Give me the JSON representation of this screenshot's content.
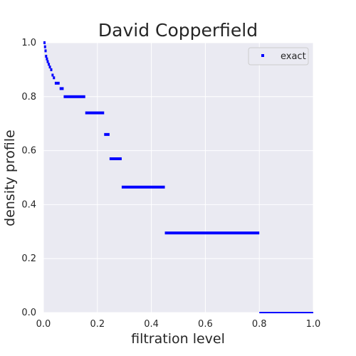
{
  "chart_data": {
    "type": "scatter",
    "title": "David Copperfield",
    "xlabel": "filtration level",
    "ylabel": "density profile",
    "xlim": [
      0,
      1
    ],
    "ylim": [
      0,
      1
    ],
    "xticks": [
      "0.0",
      "0.2",
      "0.4",
      "0.6",
      "0.8",
      "1.0"
    ],
    "yticks": [
      "0.0",
      "0.2",
      "0.4",
      "0.6",
      "0.8",
      "1.0"
    ],
    "grid": true,
    "legend_position": "top-right",
    "series": [
      {
        "name": "exact",
        "color": "#0000ff",
        "marker": "square",
        "steps": [
          {
            "x_start": 0.0,
            "x_end": 0.002,
            "y": 1.0
          },
          {
            "x_start": 0.002,
            "x_end": 0.004,
            "y": 0.985
          },
          {
            "x_start": 0.004,
            "x_end": 0.006,
            "y": 0.97
          },
          {
            "x_start": 0.006,
            "x_end": 0.009,
            "y": 0.95
          },
          {
            "x_start": 0.009,
            "x_end": 0.012,
            "y": 0.94
          },
          {
            "x_start": 0.012,
            "x_end": 0.016,
            "y": 0.93
          },
          {
            "x_start": 0.016,
            "x_end": 0.02,
            "y": 0.92
          },
          {
            "x_start": 0.02,
            "x_end": 0.025,
            "y": 0.91
          },
          {
            "x_start": 0.025,
            "x_end": 0.03,
            "y": 0.9
          },
          {
            "x_start": 0.03,
            "x_end": 0.035,
            "y": 0.88
          },
          {
            "x_start": 0.035,
            "x_end": 0.042,
            "y": 0.87
          },
          {
            "x_start": 0.042,
            "x_end": 0.05,
            "y": 0.85
          },
          {
            "x_start": 0.05,
            "x_end": 0.06,
            "y": 0.85
          },
          {
            "x_start": 0.06,
            "x_end": 0.075,
            "y": 0.83
          },
          {
            "x_start": 0.075,
            "x_end": 0.155,
            "y": 0.8
          },
          {
            "x_start": 0.155,
            "x_end": 0.225,
            "y": 0.74
          },
          {
            "x_start": 0.225,
            "x_end": 0.245,
            "y": 0.66
          },
          {
            "x_start": 0.245,
            "x_end": 0.29,
            "y": 0.57
          },
          {
            "x_start": 0.29,
            "x_end": 0.45,
            "y": 0.465
          },
          {
            "x_start": 0.45,
            "x_end": 0.8,
            "y": 0.295
          },
          {
            "x_start": 0.8,
            "x_end": 1.0,
            "y": 0.0
          }
        ]
      }
    ]
  }
}
